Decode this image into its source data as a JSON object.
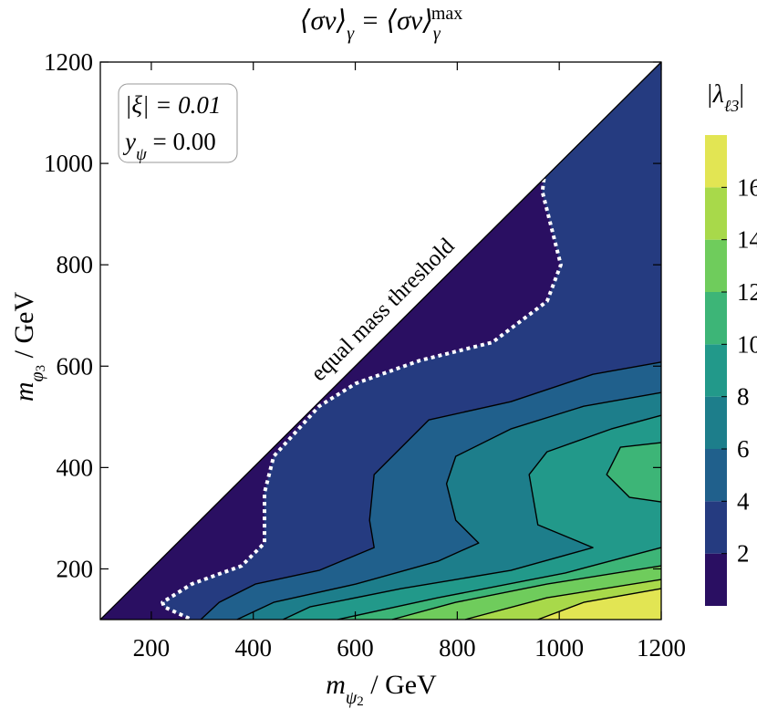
{
  "chart_data": {
    "type": "contour",
    "title": [
      "⟨σv⟩",
      "γ",
      " = ⟨σv⟩",
      "γ",
      "max"
    ],
    "x_label": [
      "m",
      "ψ",
      "2",
      " / GeV"
    ],
    "y_label": [
      "m",
      "φ",
      "3",
      " / GeV"
    ],
    "colorbar_label": [
      "|λ",
      "ℓ3",
      "|"
    ],
    "annotation": "equal mass threshold",
    "info_box": [
      "|ξ| = 0.01",
      "y",
      "ψ",
      " = 0.00"
    ],
    "xlim": [
      100,
      1200
    ],
    "ylim": [
      100,
      1200
    ],
    "xticks": [
      200,
      400,
      600,
      800,
      1000,
      1200
    ],
    "yticks": [
      200,
      400,
      600,
      800,
      1000,
      1200
    ],
    "clim": [
      0,
      18
    ],
    "cticks": [
      2,
      4,
      6,
      8,
      10,
      12,
      14,
      16
    ],
    "levels": [
      0,
      2,
      4,
      6,
      8,
      10,
      12,
      14,
      16,
      18
    ],
    "colors": [
      "#2a0f62",
      "#253b80",
      "#20608c",
      "#1d7e8b",
      "#22998a",
      "#3db577",
      "#6fcc5c",
      "#a8d94a",
      "#e2e553"
    ],
    "contours": [
      {
        "level": 2,
        "style": "dotted",
        "x": [
          970,
          967,
          985,
          1003,
          976,
          869,
          726,
          601,
          529,
          440,
          422,
          422,
          377,
          279,
          222,
          225,
          279
        ],
        "y": [
          970,
          944,
          872,
          800,
          728,
          647,
          611,
          566,
          521,
          422,
          350,
          251,
          206,
          170,
          134,
          125,
          100
        ]
      },
      {
        "level": 4,
        "style": "solid",
        "x": [
          1200,
          1066,
          905,
          744,
          637,
          628,
          637,
          529,
          404,
          333,
          297
        ],
        "y": [
          608,
          584,
          530,
          494,
          386,
          296,
          242,
          197,
          170,
          134,
          100
        ]
      },
      {
        "level": 6,
        "style": "solid",
        "x": [
          1200,
          1048,
          905,
          797,
          779,
          797,
          842,
          762,
          601,
          440,
          368
        ],
        "y": [
          548,
          521,
          476,
          422,
          368,
          296,
          251,
          215,
          170,
          134,
          100
        ]
      },
      {
        "level": 8,
        "style": "solid",
        "x": [
          1200,
          1102,
          976,
          941,
          958,
          1066,
          905,
          690,
          511,
          458
        ],
        "y": [
          503,
          476,
          431,
          386,
          287,
          242,
          197,
          161,
          125,
          100
        ]
      },
      {
        "level": 10,
        "style": "solid",
        "x": [
          1200,
          1120,
          1093,
          1138,
          1200
        ],
        "y": [
          449,
          440,
          386,
          341,
          332
        ]
      },
      {
        "level": 10,
        "style": "solid",
        "x": [
          1200,
          1012,
          762,
          565
        ],
        "y": [
          242,
          192,
          143,
          100
        ]
      },
      {
        "level": 12,
        "style": "solid",
        "x": [
          1200,
          976,
          797,
          672
        ],
        "y": [
          206,
          170,
          134,
          100
        ]
      },
      {
        "level": 14,
        "style": "solid",
        "x": [
          1200,
          976,
          815
        ],
        "y": [
          179,
          143,
          100
        ]
      },
      {
        "level": 16,
        "style": "solid",
        "x": [
          1200,
          1048,
          958
        ],
        "y": [
          161,
          134,
          100
        ]
      }
    ]
  }
}
